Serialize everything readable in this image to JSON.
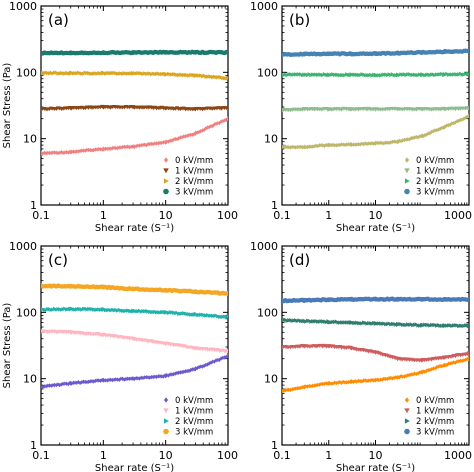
{
  "chart_data": [
    {
      "type": "scatter",
      "panel_label": "(a)",
      "xlabel": "Shear rate (S⁻¹)",
      "ylabel": "Shear Stress (Pa)",
      "xscale": "log",
      "yscale": "log",
      "xlim": [
        0.1,
        100
      ],
      "ylim": [
        1,
        1000
      ],
      "xticks": [
        "0.1",
        "1",
        "10",
        "100"
      ],
      "yticks": [
        "1",
        "10",
        "100",
        "1000"
      ],
      "legend_position": "lower-right",
      "series": [
        {
          "name": "0 kV/mm",
          "marker": "diamond",
          "color": "#f08080",
          "x": [
            0.1,
            0.3,
            1,
            3,
            10,
            30,
            100
          ],
          "y": [
            6,
            6.3,
            7,
            7.6,
            8.8,
            12,
            20
          ]
        },
        {
          "name": "1 kV/mm",
          "marker": "triangle-down",
          "color": "#8b4513",
          "x": [
            0.1,
            0.3,
            1,
            3,
            10,
            30,
            100
          ],
          "y": [
            28,
            29,
            30,
            30,
            29,
            28,
            29
          ]
        },
        {
          "name": "2 kV/mm",
          "marker": "triangle-right",
          "color": "#daa520",
          "x": [
            0.1,
            0.3,
            1,
            3,
            10,
            30,
            100
          ],
          "y": [
            98,
            97,
            97,
            96,
            94,
            90,
            82
          ]
        },
        {
          "name": "3 kV/mm",
          "marker": "circle",
          "color": "#1a7a6e",
          "x": [
            0.1,
            0.3,
            1,
            3,
            10,
            30,
            100
          ],
          "y": [
            195,
            197,
            198,
            199,
            200,
            200,
            199
          ]
        }
      ]
    },
    {
      "type": "scatter",
      "panel_label": "(b)",
      "xlabel": "Shear rate (S⁻¹)",
      "ylabel": "",
      "xscale": "log",
      "yscale": "log",
      "xlim": [
        0.1,
        1000
      ],
      "ylim": [
        1,
        1000
      ],
      "xticks": [
        "0.1",
        "1",
        "10",
        "1000"
      ],
      "yticks": [
        "1",
        "10",
        "100",
        "1000"
      ],
      "legend_position": "lower-right",
      "series": [
        {
          "name": "0 kV/mm",
          "marker": "diamond",
          "color": "#bdb76b",
          "x": [
            0.1,
            0.3,
            1,
            3,
            10,
            30,
            100,
            300,
            1000
          ],
          "y": [
            7.5,
            7.5,
            8,
            8.2,
            8.5,
            9,
            11,
            15,
            22
          ]
        },
        {
          "name": "1 kV/mm",
          "marker": "triangle-down",
          "color": "#8fbc8f",
          "x": [
            0.1,
            0.3,
            1,
            3,
            10,
            30,
            100,
            300,
            1000
          ],
          "y": [
            27,
            28,
            28,
            28,
            28,
            28,
            28,
            28,
            29
          ]
        },
        {
          "name": "2 kV/mm",
          "marker": "triangle-right",
          "color": "#3cb371",
          "x": [
            0.1,
            0.3,
            1,
            3,
            10,
            30,
            100,
            300,
            1000
          ],
          "y": [
            92,
            92,
            92,
            92,
            91,
            92,
            92,
            93,
            94
          ]
        },
        {
          "name": "3 kV/mm",
          "marker": "circle",
          "color": "#4682b4",
          "x": [
            0.1,
            0.3,
            1,
            3,
            10,
            30,
            100,
            300,
            1000
          ],
          "y": [
            185,
            188,
            190,
            190,
            192,
            195,
            200,
            205,
            210
          ]
        }
      ]
    },
    {
      "type": "scatter",
      "panel_label": "(c)",
      "xlabel": "Shear rate (S⁻¹)",
      "ylabel": "Shear Stress (Pa)",
      "xscale": "log",
      "yscale": "log",
      "xlim": [
        0.1,
        100
      ],
      "ylim": [
        1,
        1000
      ],
      "xticks": [
        "0.1",
        "1",
        "10",
        "100"
      ],
      "yticks": [
        "1",
        "10",
        "100",
        "1000"
      ],
      "legend_position": "lower-right",
      "series": [
        {
          "name": "0 kV/mm",
          "marker": "diamond",
          "color": "#6a5acd",
          "x": [
            0.1,
            0.3,
            1,
            3,
            10,
            30,
            100
          ],
          "y": [
            7.5,
            8.5,
            9.5,
            10,
            11,
            14,
            22
          ]
        },
        {
          "name": "1 kV/mm",
          "marker": "triangle-down",
          "color": "#ffb6c1",
          "x": [
            0.1,
            0.3,
            1,
            3,
            10,
            30,
            100
          ],
          "y": [
            52,
            50,
            46,
            40,
            34,
            29,
            26
          ]
        },
        {
          "name": "2 kV/mm",
          "marker": "triangle-right",
          "color": "#20b2aa",
          "x": [
            0.1,
            0.3,
            1,
            3,
            10,
            30,
            100
          ],
          "y": [
            110,
            112,
            110,
            105,
            100,
            93,
            85
          ]
        },
        {
          "name": "3 kV/mm",
          "marker": "circle",
          "color": "#f5a623",
          "x": [
            0.1,
            0.3,
            1,
            3,
            10,
            30,
            100
          ],
          "y": [
            250,
            248,
            240,
            225,
            215,
            205,
            192
          ]
        }
      ]
    },
    {
      "type": "scatter",
      "panel_label": "(d)",
      "xlabel": "Shear rate (S⁻¹)",
      "ylabel": "",
      "xscale": "log",
      "yscale": "log",
      "xlim": [
        0.1,
        1000
      ],
      "ylim": [
        1,
        1000
      ],
      "xticks": [
        "0.1",
        "1",
        "10",
        "1000"
      ],
      "yticks": [
        "1",
        "10",
        "100",
        "1000"
      ],
      "legend_position": "lower-right",
      "series": [
        {
          "name": "0 kV/mm",
          "marker": "diamond",
          "color": "#ff8c00",
          "x": [
            0.1,
            0.3,
            1,
            3,
            10,
            30,
            100,
            300,
            1000
          ],
          "y": [
            6.5,
            7.5,
            8.5,
            9,
            9.5,
            10.5,
            12.5,
            16,
            20
          ]
        },
        {
          "name": "1 kV/mm",
          "marker": "triangle-down",
          "color": "#cd5c5c",
          "x": [
            0.1,
            0.3,
            1,
            3,
            10,
            30,
            100,
            300,
            1000
          ],
          "y": [
            30,
            31,
            31,
            29,
            25,
            20,
            19,
            21,
            24
          ]
        },
        {
          "name": "2 kV/mm",
          "marker": "triangle-right",
          "color": "#2e7d6e",
          "x": [
            0.1,
            0.3,
            1,
            3,
            10,
            30,
            100,
            300,
            1000
          ],
          "y": [
            76,
            74,
            72,
            70,
            68,
            66,
            64,
            63,
            63
          ]
        },
        {
          "name": "3 kV/mm",
          "marker": "circle",
          "color": "#4a7ab8",
          "x": [
            0.1,
            0.3,
            1,
            3,
            10,
            30,
            100,
            300,
            1000
          ],
          "y": [
            150,
            152,
            155,
            157,
            158,
            158,
            157,
            157,
            156
          ]
        }
      ]
    }
  ]
}
